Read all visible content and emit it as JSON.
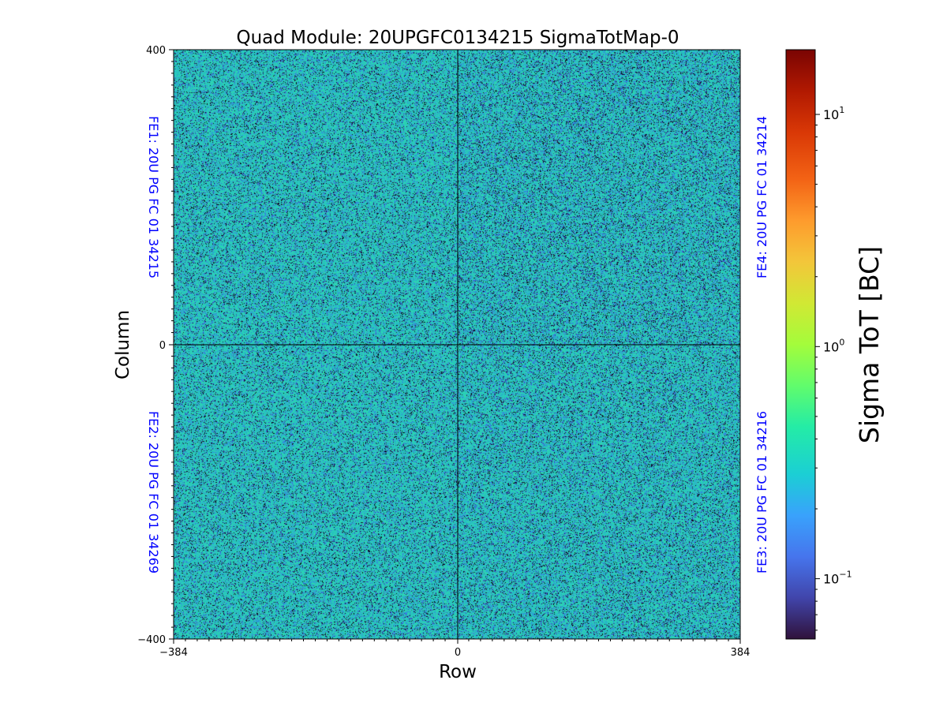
{
  "chart_data": {
    "type": "heatmap",
    "title": "Quad Module: 20UPGFC0134215 SigmaTotMap-0",
    "xlabel": "Row",
    "ylabel": "Column",
    "xlim": [
      -384,
      384
    ],
    "ylim": [
      -400,
      400
    ],
    "x_ticks": [
      "−384",
      "0",
      "384"
    ],
    "y_ticks": [
      "400",
      "0",
      "−400"
    ],
    "colormap": "turbo",
    "colorbar": {
      "label": "Sigma ToT [BC]",
      "scale": "log",
      "range": [
        0.055,
        19
      ],
      "ticks": [
        {
          "value": 10,
          "base": "10",
          "exp": "1"
        },
        {
          "value": 1,
          "base": "10",
          "exp": "0"
        },
        {
          "value": 0.1,
          "base": "10",
          "exp": "−1"
        }
      ]
    },
    "quadrants": [
      {
        "label": "FE1: 20U PG FC 01 34215",
        "position": "top-left",
        "label_side": "left"
      },
      {
        "label": "FE2: 20U PG FC 01 34269",
        "position": "bottom-left",
        "label_side": "left"
      },
      {
        "label": "FE3: 20U PG FC 01 34216",
        "position": "bottom-right",
        "label_side": "right"
      },
      {
        "label": "FE4: 20U PG FC 01 34214",
        "position": "top-right",
        "label_side": "right"
      }
    ],
    "typical_value_range": [
      0.1,
      0.5
    ],
    "dominant_value": 0.3
  }
}
